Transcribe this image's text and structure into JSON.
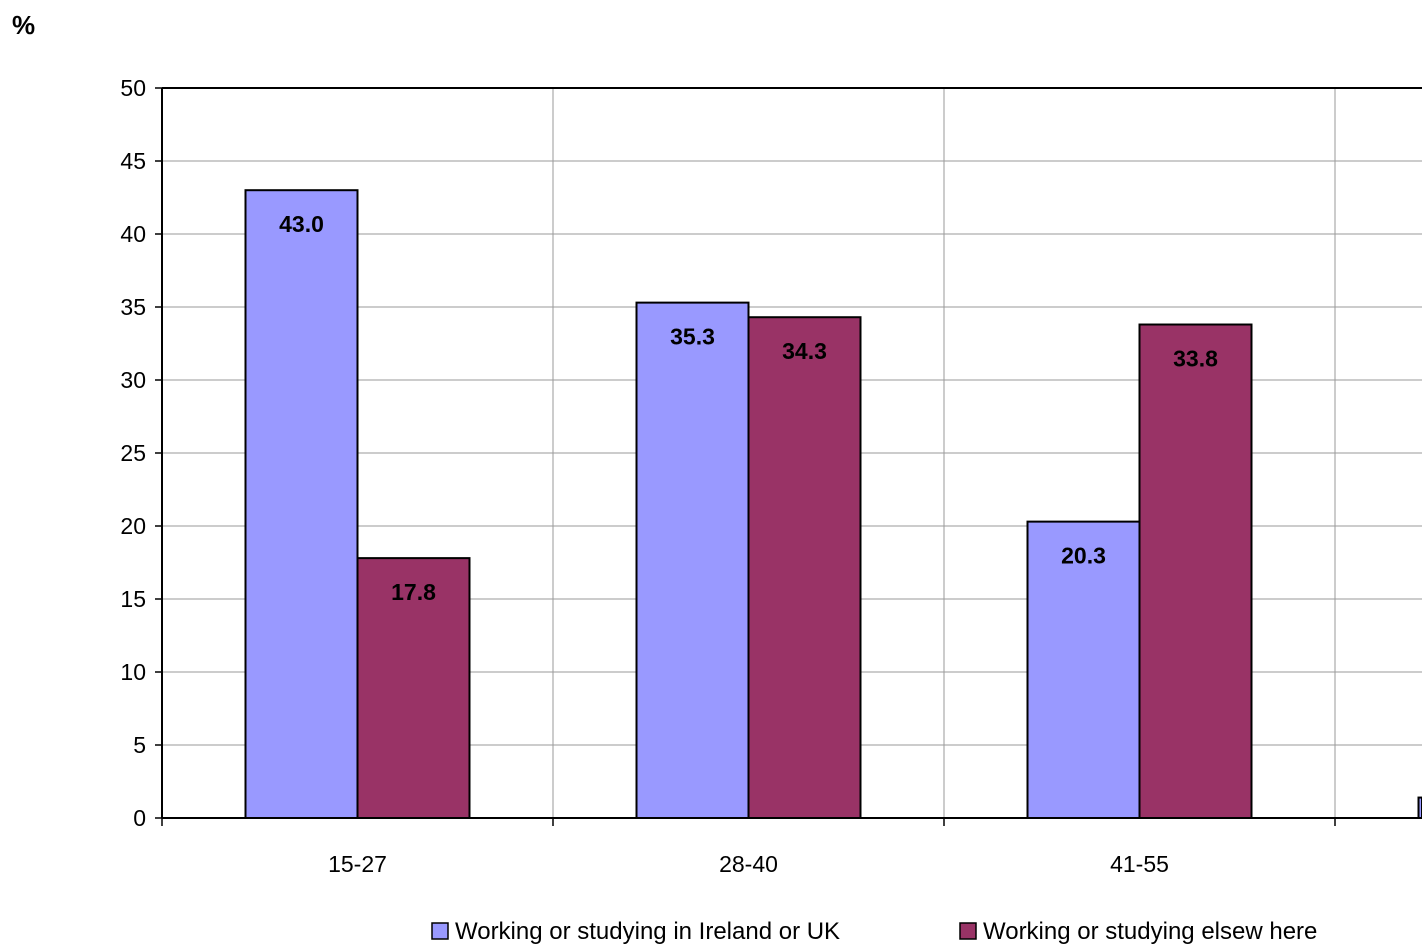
{
  "chart_data": {
    "type": "bar",
    "ylabel": "%",
    "ylim": [
      0,
      50
    ],
    "ytick_step": 5,
    "grid": true,
    "legend_position": "bottom",
    "categories": [
      "15-27",
      "28-40",
      "41-55",
      ""
    ],
    "series": [
      {
        "name": "Working or studying in Ireland or UK",
        "color": "#9999ff",
        "values": [
          43.0,
          35.3,
          20.3,
          1.4
        ],
        "labels": [
          "43.0",
          "35.3",
          "20.3",
          ""
        ]
      },
      {
        "name": "Working or studying elsew here",
        "color": "#993366",
        "values": [
          17.8,
          34.3,
          33.8,
          null
        ],
        "labels": [
          "17.8",
          "34.3",
          "33.8",
          ""
        ]
      }
    ]
  }
}
